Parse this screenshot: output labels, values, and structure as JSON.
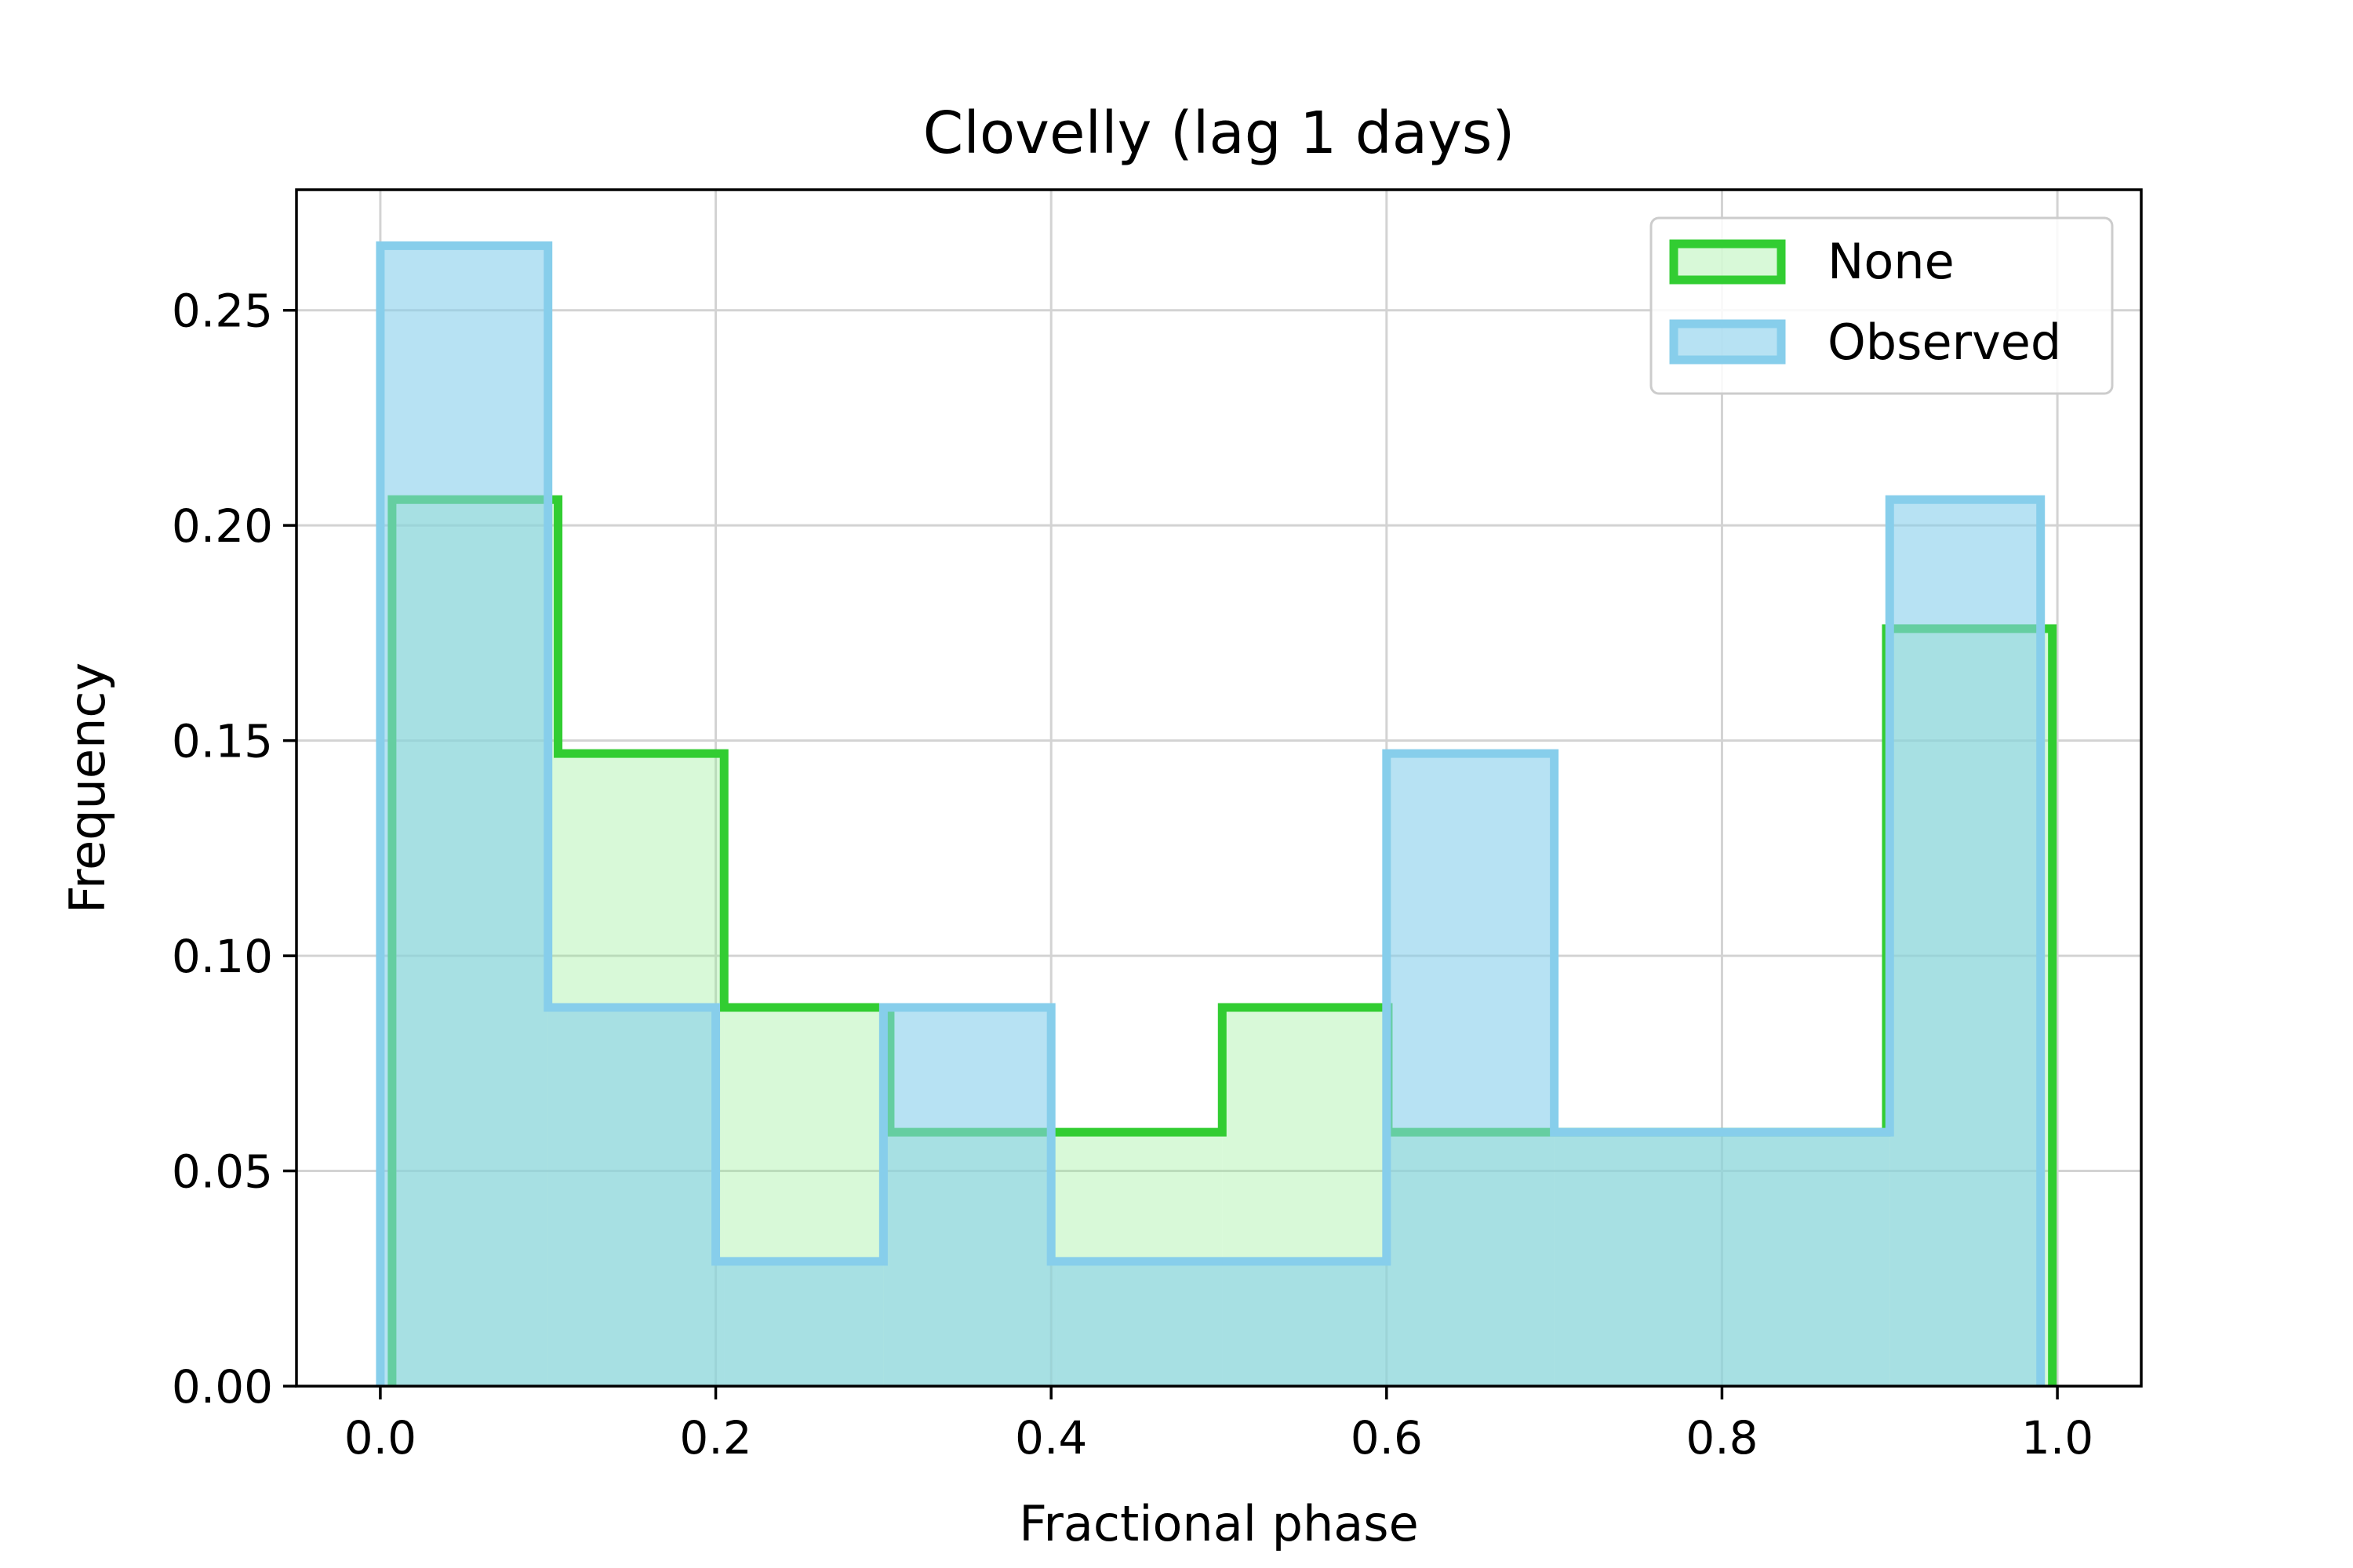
{
  "chart_data": {
    "type": "histogram",
    "title": "Clovelly (lag 1 days)",
    "xlabel": "Fractional phase",
    "ylabel": "Frequency",
    "xlim": [
      -0.05,
      1.05
    ],
    "ylim": [
      0,
      0.278
    ],
    "x_ticks": [
      0.0,
      0.2,
      0.4,
      0.6,
      0.8,
      1.0
    ],
    "x_tick_labels": [
      "0.0",
      "0.2",
      "0.4",
      "0.6",
      "0.8",
      "1.0"
    ],
    "y_ticks": [
      0.0,
      0.05,
      0.1,
      0.15,
      0.2,
      0.25
    ],
    "y_tick_labels": [
      "0.00",
      "0.05",
      "0.10",
      "0.15",
      "0.20",
      "0.25"
    ],
    "grid": true,
    "legend_position": "top-right",
    "series": [
      {
        "name": "None",
        "edge_color": "#32cd32",
        "fill_color": "#90ee90",
        "fill_opacity": 0.35,
        "bin_edges": [
          0.007,
          0.106,
          0.205,
          0.304,
          0.403,
          0.502,
          0.601,
          0.7,
          0.799,
          0.898,
          0.997
        ],
        "values": [
          0.206,
          0.147,
          0.088,
          0.059,
          0.059,
          0.088,
          0.059,
          0.059,
          0.059,
          0.176
        ]
      },
      {
        "name": "Observed",
        "edge_color": "#87ceeb",
        "fill_color": "#87ceeb",
        "fill_opacity": 0.6,
        "bin_edges": [
          0.0,
          0.1,
          0.2,
          0.3,
          0.4,
          0.5,
          0.6,
          0.7,
          0.8,
          0.9,
          0.99
        ],
        "values": [
          0.265,
          0.088,
          0.029,
          0.088,
          0.029,
          0.029,
          0.147,
          0.059,
          0.059,
          0.206
        ]
      }
    ]
  }
}
